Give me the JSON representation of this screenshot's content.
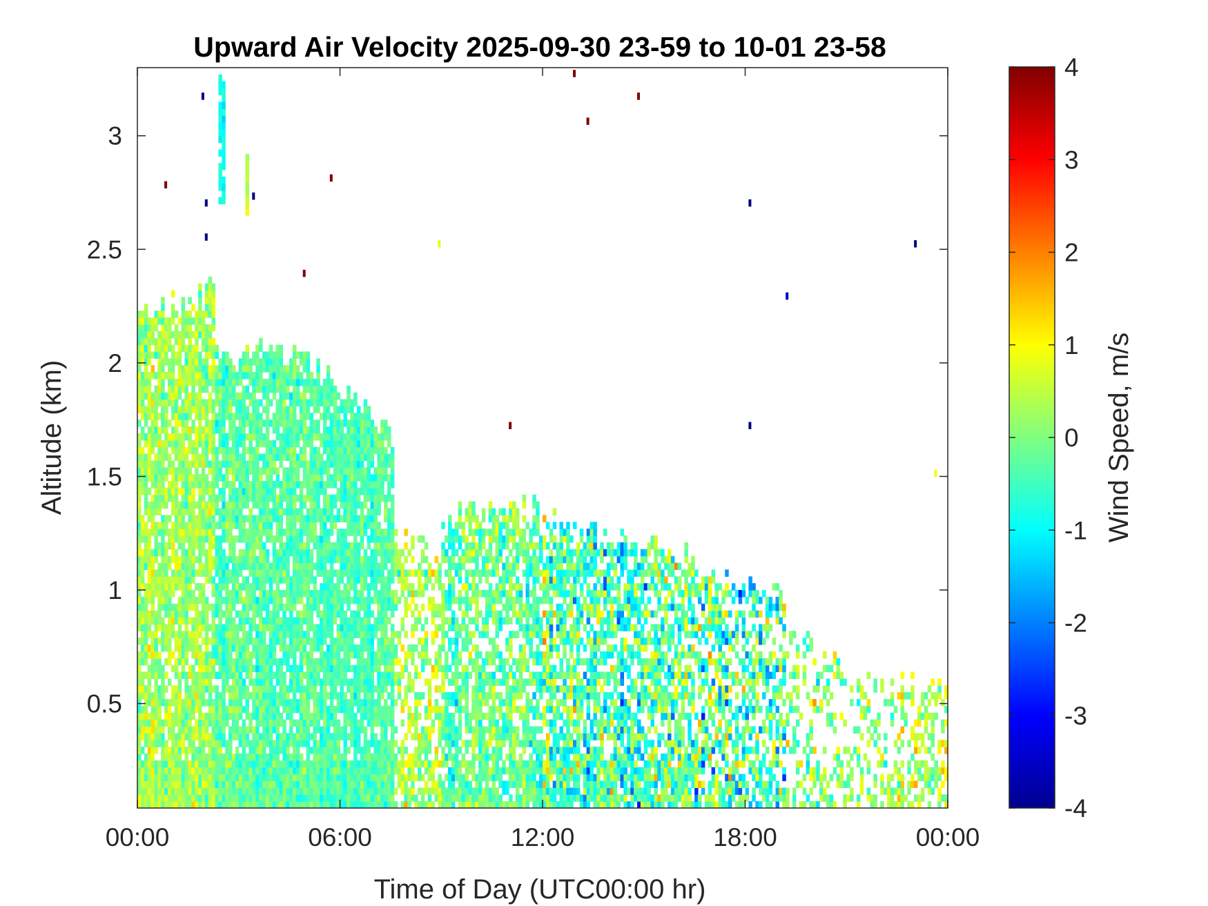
{
  "chart_data": {
    "type": "heatmap",
    "title": "Upward Air Velocity 2025-09-30 23-59 to 10-01 23-58",
    "xlabel": "Time of Day (UTC00:00 hr)",
    "ylabel": "Altitude (km)",
    "x_unit": "hours",
    "xlim": [
      0,
      24
    ],
    "ylim": [
      0.04,
      3.3
    ],
    "x_ticks": [
      {
        "value": 0,
        "label": "00:00"
      },
      {
        "value": 6,
        "label": "06:00"
      },
      {
        "value": 12,
        "label": "12:00"
      },
      {
        "value": 18,
        "label": "18:00"
      },
      {
        "value": 24,
        "label": "00:00"
      }
    ],
    "y_ticks": [
      {
        "value": 0.5,
        "label": "0.5"
      },
      {
        "value": 1,
        "label": "1"
      },
      {
        "value": 1.5,
        "label": "1.5"
      },
      {
        "value": 2,
        "label": "2"
      },
      {
        "value": 2.5,
        "label": "2.5"
      },
      {
        "value": 3,
        "label": "3"
      }
    ],
    "colorbar": {
      "label": "Wind Speed, m/s",
      "colormap": "jet",
      "clim": [
        -4,
        4
      ],
      "ticks": [
        {
          "value": 4,
          "label": "4"
        },
        {
          "value": 3,
          "label": "3"
        },
        {
          "value": 2,
          "label": "2"
        },
        {
          "value": 1,
          "label": "1"
        },
        {
          "value": 0,
          "label": "0"
        },
        {
          "value": -1,
          "label": "-1"
        },
        {
          "value": -2,
          "label": "-2"
        },
        {
          "value": -3,
          "label": "-3"
        },
        {
          "value": -4,
          "label": "-4"
        }
      ]
    },
    "grid": false,
    "regions": [
      {
        "x": [
          0,
          2.3
        ],
        "ytop": [
          2.2,
          2.3
        ],
        "mean": 0.3,
        "spread": 0.7,
        "density": 0.85
      },
      {
        "x": [
          2.3,
          5.0
        ],
        "ytop": [
          2.05,
          2.0
        ],
        "mean": -0.2,
        "spread": 0.6,
        "density": 0.85
      },
      {
        "x": [
          5.0,
          7.6
        ],
        "ytop": [
          2.0,
          1.65
        ],
        "mean": -0.4,
        "spread": 0.5,
        "density": 0.85
      },
      {
        "x": [
          7.6,
          9.0
        ],
        "ytop": [
          1.25,
          1.1
        ],
        "mean": 0.4,
        "spread": 0.8,
        "density": 0.55
      },
      {
        "x": [
          9.0,
          12.0
        ],
        "ytop": [
          1.3,
          1.35
        ],
        "mean": -0.2,
        "spread": 0.8,
        "density": 0.7
      },
      {
        "x": [
          12.0,
          16.5
        ],
        "ytop": [
          1.3,
          1.15
        ],
        "mean": -0.3,
        "spread": 1.3,
        "density": 0.7
      },
      {
        "x": [
          16.5,
          19.2
        ],
        "ytop": [
          1.1,
          0.95
        ],
        "mean": -0.2,
        "spread": 1.6,
        "density": 0.55
      },
      {
        "x": [
          19.2,
          22.5
        ],
        "ytop": [
          0.85,
          0.55
        ],
        "mean": 0.1,
        "spread": 0.9,
        "density": 0.3
      },
      {
        "x": [
          22.5,
          24.0
        ],
        "ytop": [
          0.6,
          0.55
        ],
        "mean": 0.3,
        "spread": 0.9,
        "density": 0.4
      }
    ],
    "plumes": [
      {
        "x": [
          2.4,
          2.55
        ],
        "y": [
          2.7,
          3.27
        ],
        "value": -0.9
      },
      {
        "x": [
          3.2,
          3.3
        ],
        "y": [
          2.65,
          2.9
        ],
        "value": 0.5
      }
    ],
    "outliers": [
      {
        "x": 0.8,
        "y": 2.77,
        "value": 4
      },
      {
        "x": 1.9,
        "y": 3.16,
        "value": -4
      },
      {
        "x": 2.0,
        "y": 2.69,
        "value": -4
      },
      {
        "x": 2.0,
        "y": 2.54,
        "value": -4
      },
      {
        "x": 3.4,
        "y": 2.72,
        "value": -4
      },
      {
        "x": 4.9,
        "y": 2.38,
        "value": 4
      },
      {
        "x": 5.7,
        "y": 2.8,
        "value": 4
      },
      {
        "x": 8.9,
        "y": 2.51,
        "value": 0.8
      },
      {
        "x": 11.0,
        "y": 1.71,
        "value": 4
      },
      {
        "x": 12.9,
        "y": 3.26,
        "value": 4
      },
      {
        "x": 13.3,
        "y": 3.05,
        "value": 4
      },
      {
        "x": 14.8,
        "y": 3.16,
        "value": 4
      },
      {
        "x": 18.1,
        "y": 2.69,
        "value": -4
      },
      {
        "x": 18.1,
        "y": 1.71,
        "value": -4
      },
      {
        "x": 19.2,
        "y": 2.28,
        "value": -3.5
      },
      {
        "x": 23.0,
        "y": 2.51,
        "value": -4
      },
      {
        "x": 23.6,
        "y": 1.5,
        "value": 0.9
      }
    ]
  }
}
